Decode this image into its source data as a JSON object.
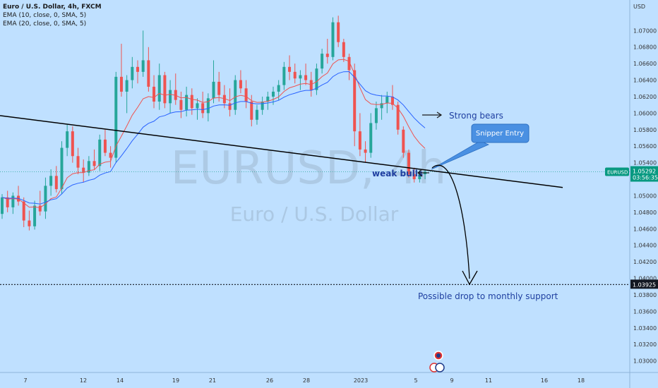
{
  "header": {
    "title": "Euro / U.S. Dollar, 4h, FXCM",
    "indicators": [
      "EMA (10, close, 0, SMA, 5)",
      "EMA (20, close, 0, SMA, 5)"
    ]
  },
  "watermark": {
    "symbol": "EURUSD, 4h",
    "name": "Euro / U.S. Dollar"
  },
  "colors": {
    "background": "#bfe0ff",
    "up": "#26a69a",
    "down": "#ef5350",
    "ema10": "#ef5350",
    "ema20": "#2962ff",
    "annotation": "#1f3fa0",
    "callout": "#4a90e2",
    "symbol_tag": "#089981",
    "support_tag": "#131722"
  },
  "annotations": {
    "strong_bears": "Strong bears",
    "weak_bulls": "weak bulls",
    "snipper_entry": "Snipper Entry",
    "possible_drop": "Possible drop to monthly support"
  },
  "price_scale": {
    "currency": "USD",
    "symbol_tag": "EURUSD",
    "current_price": "1.05292",
    "countdown": "03:56:35",
    "support_price": "1.03925"
  },
  "chart_data": {
    "type": "candlestick",
    "ylim": [
      1.0286,
      1.0737
    ],
    "y_ticks": [
      "1.07000",
      "1.06800",
      "1.06600",
      "1.06400",
      "1.06200",
      "1.06000",
      "1.05800",
      "1.05600",
      "1.05400",
      "1.05200",
      "1.05000",
      "1.04800",
      "1.04600",
      "1.04400",
      "1.04200",
      "1.04000",
      "1.03800",
      "1.03600",
      "1.03400",
      "1.03200",
      "1.03000"
    ],
    "x_ticks": [
      "7",
      "12",
      "14",
      "19",
      "21",
      "26",
      "28",
      "2023",
      "5",
      "9",
      "11",
      "16",
      "18"
    ],
    "support_level": 1.03925,
    "trendline": [
      [
        1.0597,
        0.0
      ],
      [
        1.051,
        1.0
      ]
    ],
    "series": [
      {
        "name": "EURUSD",
        "values": [
          [
            1.0478,
            1.0502,
            1.0472,
            1.0498
          ],
          [
            1.0498,
            1.0506,
            1.048,
            1.0486
          ],
          [
            1.0486,
            1.0504,
            1.0478,
            1.05
          ],
          [
            1.05,
            1.0512,
            1.0488,
            1.0493
          ],
          [
            1.0493,
            1.0498,
            1.0462,
            1.047
          ],
          [
            1.047,
            1.0482,
            1.0458,
            1.0463
          ],
          [
            1.0463,
            1.0494,
            1.0459,
            1.0488
          ],
          [
            1.0488,
            1.0506,
            1.0476,
            1.0481
          ],
          [
            1.0481,
            1.0522,
            1.0472,
            1.0512
          ],
          [
            1.0512,
            1.0532,
            1.05,
            1.0524
          ],
          [
            1.0524,
            1.0536,
            1.0504,
            1.0508
          ],
          [
            1.0508,
            1.0566,
            1.0502,
            1.0558
          ],
          [
            1.0558,
            1.0586,
            1.0548,
            1.0578
          ],
          [
            1.0578,
            1.0584,
            1.054,
            1.0548
          ],
          [
            1.0548,
            1.0558,
            1.0526,
            1.0534
          ],
          [
            1.0534,
            1.0544,
            1.0516,
            1.0528
          ],
          [
            1.0528,
            1.0548,
            1.0524,
            1.0542
          ],
          [
            1.0542,
            1.0556,
            1.0532,
            1.0536
          ],
          [
            1.0536,
            1.0574,
            1.053,
            1.0568
          ],
          [
            1.0568,
            1.058,
            1.0548,
            1.0552
          ],
          [
            1.0552,
            1.056,
            1.0534,
            1.0546
          ],
          [
            1.0546,
            1.065,
            1.054,
            1.0644
          ],
          [
            1.0644,
            1.0684,
            1.062,
            1.0626
          ],
          [
            1.0626,
            1.0646,
            1.06,
            1.064
          ],
          [
            1.064,
            1.0668,
            1.063,
            1.0656
          ],
          [
            1.0656,
            1.0664,
            1.0636,
            1.065
          ],
          [
            1.065,
            1.07,
            1.0644,
            1.0664
          ],
          [
            1.0664,
            1.068,
            1.0626,
            1.0632
          ],
          [
            1.0632,
            1.0646,
            1.0606,
            1.0614
          ],
          [
            1.0614,
            1.066,
            1.0604,
            1.0646
          ],
          [
            1.0646,
            1.065,
            1.0606,
            1.0612
          ],
          [
            1.0612,
            1.064,
            1.06,
            1.0628
          ],
          [
            1.0628,
            1.0648,
            1.061,
            1.0616
          ],
          [
            1.0616,
            1.0626,
            1.0594,
            1.0604
          ],
          [
            1.0604,
            1.0632,
            1.0596,
            1.0622
          ],
          [
            1.0622,
            1.063,
            1.0598,
            1.0606
          ],
          [
            1.0606,
            1.0618,
            1.0592,
            1.0612
          ],
          [
            1.0612,
            1.0626,
            1.0594,
            1.06
          ],
          [
            1.06,
            1.0624,
            1.059,
            1.0618
          ],
          [
            1.0618,
            1.0664,
            1.0612,
            1.0638
          ],
          [
            1.0638,
            1.065,
            1.0614,
            1.0622
          ],
          [
            1.0622,
            1.0634,
            1.0606,
            1.0612
          ],
          [
            1.0612,
            1.063,
            1.0596,
            1.0604
          ],
          [
            1.0604,
            1.0646,
            1.0598,
            1.064
          ],
          [
            1.064,
            1.0652,
            1.0624,
            1.063
          ],
          [
            1.063,
            1.064,
            1.0606,
            1.0614
          ],
          [
            1.0614,
            1.0622,
            1.0584,
            1.0592
          ],
          [
            1.0592,
            1.061,
            1.0586,
            1.0604
          ],
          [
            1.0604,
            1.062,
            1.0598,
            1.0614
          ],
          [
            1.0614,
            1.0626,
            1.0604,
            1.062
          ],
          [
            1.062,
            1.0632,
            1.061,
            1.0626
          ],
          [
            1.0626,
            1.064,
            1.0616,
            1.0634
          ],
          [
            1.0634,
            1.0662,
            1.0628,
            1.0656
          ],
          [
            1.0656,
            1.067,
            1.064,
            1.065
          ],
          [
            1.065,
            1.066,
            1.0636,
            1.0642
          ],
          [
            1.0642,
            1.0652,
            1.0628,
            1.0646
          ],
          [
            1.0646,
            1.066,
            1.0634,
            1.064
          ],
          [
            1.064,
            1.065,
            1.062,
            1.0628
          ],
          [
            1.0628,
            1.066,
            1.0622,
            1.0654
          ],
          [
            1.0654,
            1.0678,
            1.0648,
            1.0672
          ],
          [
            1.0672,
            1.069,
            1.066,
            1.0668
          ],
          [
            1.0668,
            1.0716,
            1.0664,
            1.071
          ],
          [
            1.071,
            1.0718,
            1.068,
            1.0686
          ],
          [
            1.0686,
            1.069,
            1.0662,
            1.0668
          ],
          [
            1.0668,
            1.0672,
            1.064,
            1.0652
          ],
          [
            1.0652,
            1.066,
            1.056,
            1.0578
          ],
          [
            1.0578,
            1.06,
            1.0548,
            1.0556
          ],
          [
            1.0556,
            1.0566,
            1.054,
            1.0552
          ],
          [
            1.0552,
            1.06,
            1.0546,
            1.0588
          ],
          [
            1.0588,
            1.0614,
            1.058,
            1.0606
          ],
          [
            1.0606,
            1.0622,
            1.0592,
            1.0612
          ],
          [
            1.0612,
            1.0626,
            1.06,
            1.062
          ],
          [
            1.062,
            1.0634,
            1.0604,
            1.061
          ],
          [
            1.061,
            1.0614,
            1.0574,
            1.058
          ],
          [
            1.058,
            1.0584,
            1.0546,
            1.0552
          ],
          [
            1.0552,
            1.0556,
            1.0522,
            1.0526
          ],
          [
            1.0526,
            1.0534,
            1.0516,
            1.052
          ],
          [
            1.052,
            1.0531,
            1.0516,
            1.0526
          ],
          [
            1.0526,
            1.0532,
            1.052,
            1.0529
          ]
        ]
      }
    ]
  }
}
